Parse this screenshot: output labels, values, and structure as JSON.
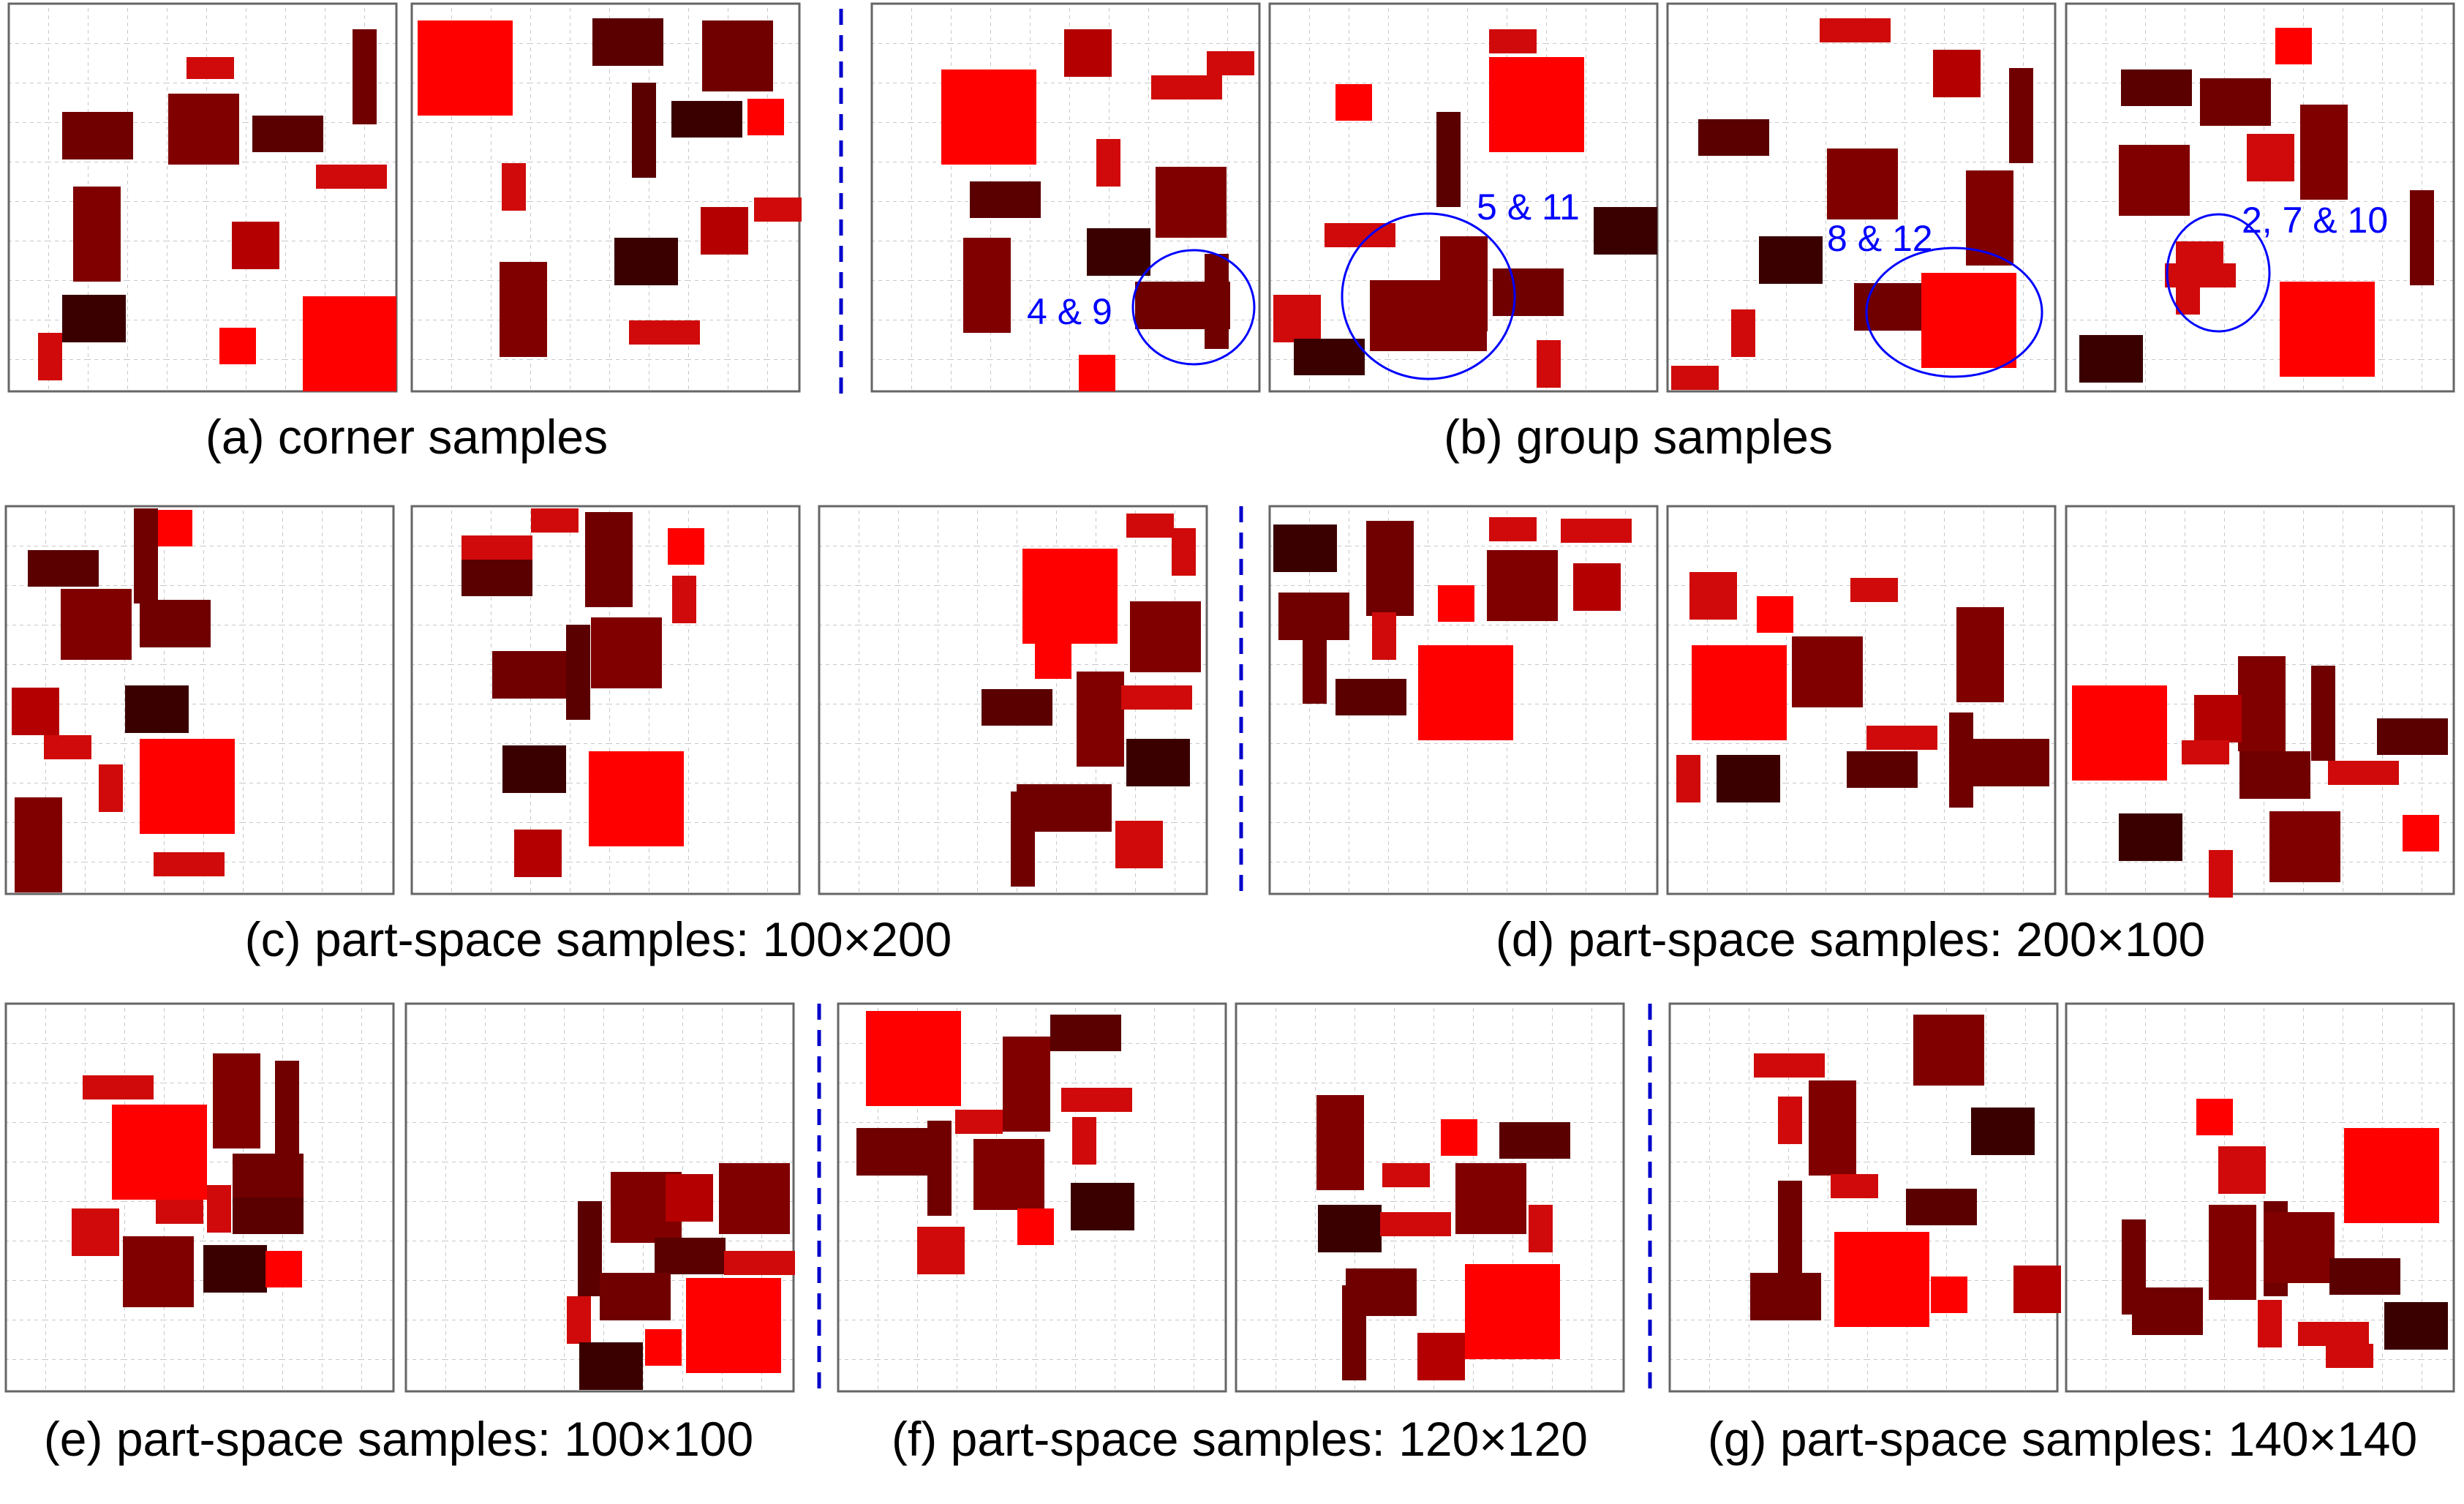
{
  "figure": {
    "captions": {
      "a": "(a) corner samples",
      "b": "(b) group samples",
      "c": "(c) part-space samples: 100×200",
      "d": "(d) part-space samples: 200×100",
      "e": "(e) part-space samples: 100×100",
      "f": "(f) part-space samples: 120×120",
      "g": "(g) part-space samples: 140×140"
    },
    "annotations": {
      "b1": "4 & 9",
      "b2": "5 & 11",
      "b3": "8 & 12",
      "b4": "2, 7 & 10"
    },
    "colors": {
      "bright_red": "#ff0000",
      "red": "#d00a0a",
      "crimson": "#b40000",
      "maroon": "#800000",
      "dark_maroon": "#700000",
      "darkest": "#3a0000",
      "grid": "#c8c8c8",
      "frame": "#666666",
      "annotation_blue": "#0000ff",
      "separator_blue": "#0000cc"
    }
  }
}
